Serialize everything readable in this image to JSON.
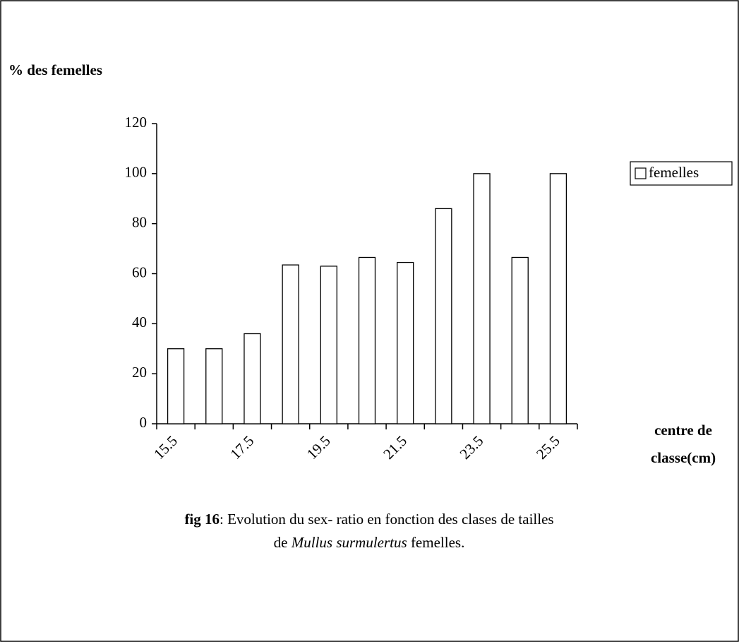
{
  "chart_data": {
    "type": "bar",
    "ylabel": "% des femelles",
    "xlabel": [
      "centre de",
      "classe(cm)"
    ],
    "categories": [
      "15.5",
      null,
      "17.5",
      null,
      "19.5",
      null,
      "21.5",
      null,
      "23.5",
      null,
      "25.5"
    ],
    "series": [
      {
        "name": "femelles",
        "color": "#ffffff",
        "values": [
          30,
          30,
          36,
          63.5,
          63,
          66.5,
          64.5,
          86,
          100,
          66.5,
          100
        ]
      }
    ],
    "ylim": [
      0,
      120
    ],
    "yticks": [
      0,
      20,
      40,
      60,
      80,
      100,
      120
    ],
    "legend": "right",
    "caption": {
      "label": "fig  16",
      "line1": ": Evolution du sex- ratio en fonction des clases de tailles",
      "line2_prefix": "de ",
      "species": "Mullus surmulertus",
      "line2_suffix": "  femelles."
    }
  }
}
